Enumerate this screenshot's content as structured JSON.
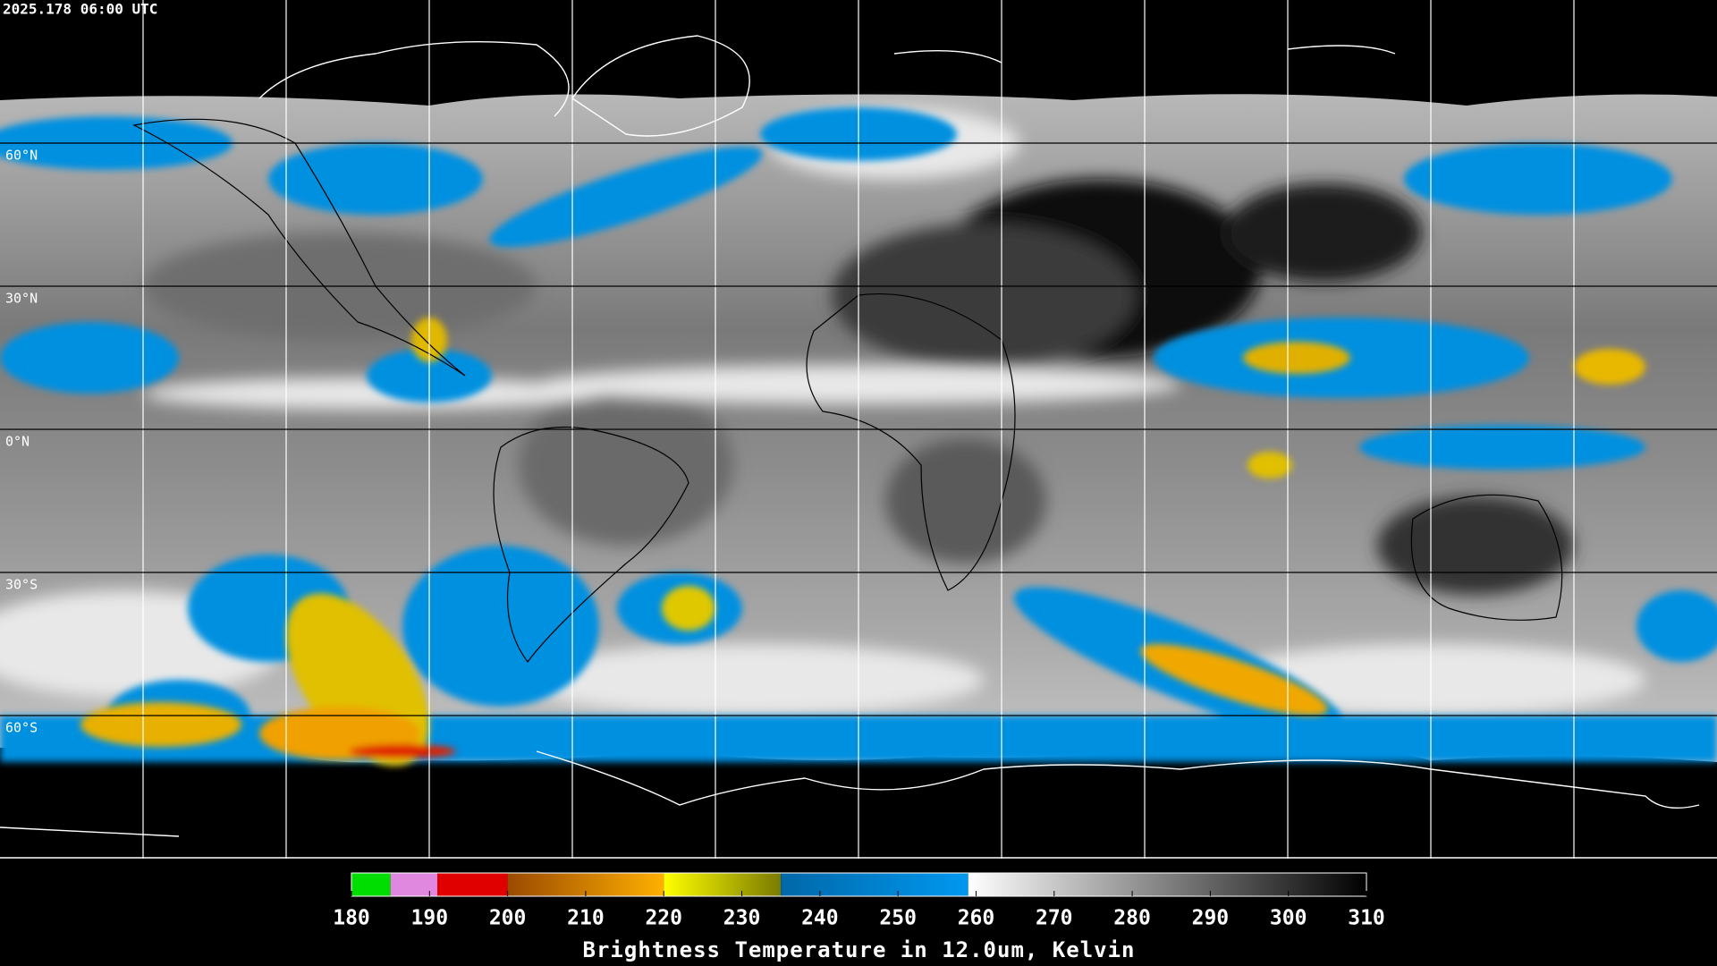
{
  "timestamp": "2025.178 06:00 UTC",
  "map": {
    "lat_range": [
      -90,
      90
    ],
    "lon_range": [
      -180,
      180
    ],
    "lat_grid": [
      {
        "value": 60,
        "label": "60°N"
      },
      {
        "value": 30,
        "label": "30°N"
      },
      {
        "value": 0,
        "label": "0°N"
      },
      {
        "value": -30,
        "label": "30°S"
      },
      {
        "value": -60,
        "label": "60°S"
      }
    ],
    "lon_grid": [
      -150,
      -120,
      -90,
      -60,
      -30,
      0,
      30,
      60,
      90,
      120,
      150
    ]
  },
  "colorbar": {
    "title": "Brightness Temperature in 12.0um, Kelvin",
    "range": [
      180,
      310
    ],
    "ticks": [
      180,
      190,
      200,
      210,
      220,
      230,
      240,
      250,
      260,
      270,
      280,
      290,
      300,
      310
    ],
    "segments": [
      {
        "from": 180,
        "to": 185,
        "colors": [
          "#00dd00",
          "#00dd00"
        ]
      },
      {
        "from": 185,
        "to": 191,
        "colors": [
          "#e088e0",
          "#e088e0"
        ]
      },
      {
        "from": 191,
        "to": 200,
        "colors": [
          "#e00000",
          "#e00000"
        ]
      },
      {
        "from": 200,
        "to": 220,
        "colors": [
          "#9a4a00",
          "#ffb000"
        ]
      },
      {
        "from": 220,
        "to": 235,
        "colors": [
          "#ffff00",
          "#7a7a00"
        ]
      },
      {
        "from": 235,
        "to": 259,
        "colors": [
          "#0068a8",
          "#0098f0"
        ]
      },
      {
        "from": 259,
        "to": 310,
        "colors": [
          "#ffffff",
          "#000000"
        ]
      }
    ]
  }
}
